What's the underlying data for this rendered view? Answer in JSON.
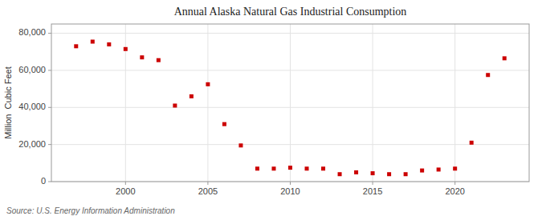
{
  "chart_data": {
    "type": "scatter",
    "title": "Annual Alaska Natural Gas Industrial Consumption",
    "y_label": "Million  Cubic Feet",
    "annotations": [
      "Source: U.S. Energy Information Administration"
    ],
    "x": [
      1997,
      1998,
      1999,
      2000,
      2001,
      2002,
      2003,
      2004,
      2005,
      2006,
      2007,
      2008,
      2009,
      2010,
      2011,
      2012,
      2013,
      2014,
      2015,
      2016,
      2017,
      2018,
      2019,
      2020,
      2021,
      2022,
      2023
    ],
    "values": [
      73000,
      75500,
      74000,
      71500,
      67000,
      65500,
      41000,
      46000,
      52500,
      31000,
      19500,
      7000,
      7000,
      7500,
      7000,
      7000,
      4000,
      5000,
      4500,
      4000,
      4000,
      6000,
      6500,
      7000,
      21000,
      57500,
      66500
    ],
    "color": "#cc0000",
    "marker": "square",
    "xlim": [
      1995.5,
      2024.5
    ],
    "ylim": [
      0,
      85000
    ],
    "xticks": [
      2000,
      2005,
      2010,
      2015,
      2020
    ],
    "yticks": [
      0,
      {
        "value": 20000,
        "label": "20,000"
      },
      {
        "value": 40000,
        "label": "40,000"
      },
      {
        "value": 60000,
        "label": "60,000"
      },
      {
        "value": 80000,
        "label": "80,000"
      }
    ],
    "grid": true
  }
}
